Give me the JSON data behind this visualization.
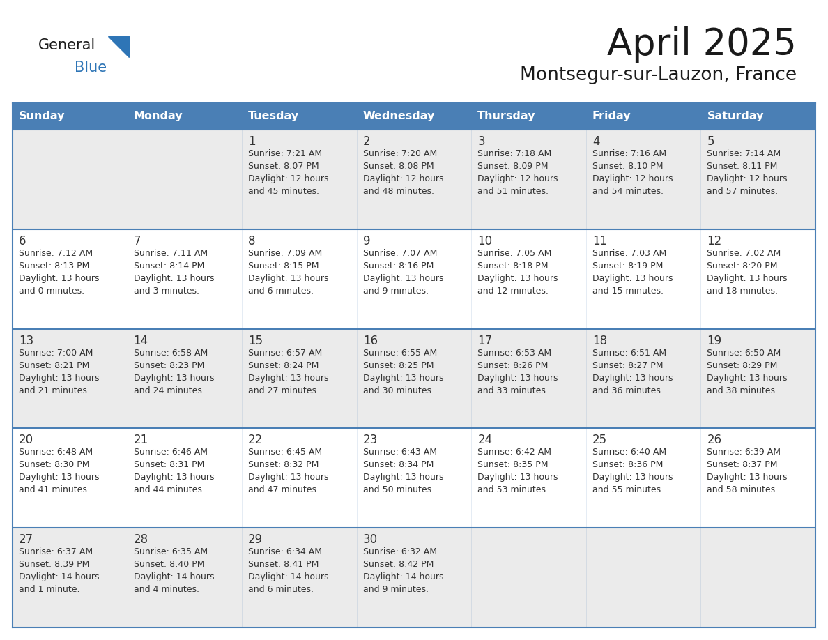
{
  "title": "April 2025",
  "subtitle": "Montsegur-sur-Lauzon, France",
  "days_of_week": [
    "Sunday",
    "Monday",
    "Tuesday",
    "Wednesday",
    "Thursday",
    "Friday",
    "Saturday"
  ],
  "header_bg": "#4a7fb5",
  "header_text": "#ffffff",
  "row_bg_light": "#ebebeb",
  "row_bg_white": "#ffffff",
  "cell_text": "#333333",
  "border_color": "#4a7fb5",
  "title_color": "#1a1a1a",
  "subtitle_color": "#1a1a1a",
  "logo_general_color": "#1a1a1a",
  "logo_blue_color": "#2e75b6",
  "weeks": [
    [
      {
        "day": "",
        "sunrise": "",
        "sunset": "",
        "daylight": ""
      },
      {
        "day": "",
        "sunrise": "",
        "sunset": "",
        "daylight": ""
      },
      {
        "day": "1",
        "sunrise": "Sunrise: 7:21 AM",
        "sunset": "Sunset: 8:07 PM",
        "daylight": "Daylight: 12 hours\nand 45 minutes."
      },
      {
        "day": "2",
        "sunrise": "Sunrise: 7:20 AM",
        "sunset": "Sunset: 8:08 PM",
        "daylight": "Daylight: 12 hours\nand 48 minutes."
      },
      {
        "day": "3",
        "sunrise": "Sunrise: 7:18 AM",
        "sunset": "Sunset: 8:09 PM",
        "daylight": "Daylight: 12 hours\nand 51 minutes."
      },
      {
        "day": "4",
        "sunrise": "Sunrise: 7:16 AM",
        "sunset": "Sunset: 8:10 PM",
        "daylight": "Daylight: 12 hours\nand 54 minutes."
      },
      {
        "day": "5",
        "sunrise": "Sunrise: 7:14 AM",
        "sunset": "Sunset: 8:11 PM",
        "daylight": "Daylight: 12 hours\nand 57 minutes."
      }
    ],
    [
      {
        "day": "6",
        "sunrise": "Sunrise: 7:12 AM",
        "sunset": "Sunset: 8:13 PM",
        "daylight": "Daylight: 13 hours\nand 0 minutes."
      },
      {
        "day": "7",
        "sunrise": "Sunrise: 7:11 AM",
        "sunset": "Sunset: 8:14 PM",
        "daylight": "Daylight: 13 hours\nand 3 minutes."
      },
      {
        "day": "8",
        "sunrise": "Sunrise: 7:09 AM",
        "sunset": "Sunset: 8:15 PM",
        "daylight": "Daylight: 13 hours\nand 6 minutes."
      },
      {
        "day": "9",
        "sunrise": "Sunrise: 7:07 AM",
        "sunset": "Sunset: 8:16 PM",
        "daylight": "Daylight: 13 hours\nand 9 minutes."
      },
      {
        "day": "10",
        "sunrise": "Sunrise: 7:05 AM",
        "sunset": "Sunset: 8:18 PM",
        "daylight": "Daylight: 13 hours\nand 12 minutes."
      },
      {
        "day": "11",
        "sunrise": "Sunrise: 7:03 AM",
        "sunset": "Sunset: 8:19 PM",
        "daylight": "Daylight: 13 hours\nand 15 minutes."
      },
      {
        "day": "12",
        "sunrise": "Sunrise: 7:02 AM",
        "sunset": "Sunset: 8:20 PM",
        "daylight": "Daylight: 13 hours\nand 18 minutes."
      }
    ],
    [
      {
        "day": "13",
        "sunrise": "Sunrise: 7:00 AM",
        "sunset": "Sunset: 8:21 PM",
        "daylight": "Daylight: 13 hours\nand 21 minutes."
      },
      {
        "day": "14",
        "sunrise": "Sunrise: 6:58 AM",
        "sunset": "Sunset: 8:23 PM",
        "daylight": "Daylight: 13 hours\nand 24 minutes."
      },
      {
        "day": "15",
        "sunrise": "Sunrise: 6:57 AM",
        "sunset": "Sunset: 8:24 PM",
        "daylight": "Daylight: 13 hours\nand 27 minutes."
      },
      {
        "day": "16",
        "sunrise": "Sunrise: 6:55 AM",
        "sunset": "Sunset: 8:25 PM",
        "daylight": "Daylight: 13 hours\nand 30 minutes."
      },
      {
        "day": "17",
        "sunrise": "Sunrise: 6:53 AM",
        "sunset": "Sunset: 8:26 PM",
        "daylight": "Daylight: 13 hours\nand 33 minutes."
      },
      {
        "day": "18",
        "sunrise": "Sunrise: 6:51 AM",
        "sunset": "Sunset: 8:27 PM",
        "daylight": "Daylight: 13 hours\nand 36 minutes."
      },
      {
        "day": "19",
        "sunrise": "Sunrise: 6:50 AM",
        "sunset": "Sunset: 8:29 PM",
        "daylight": "Daylight: 13 hours\nand 38 minutes."
      }
    ],
    [
      {
        "day": "20",
        "sunrise": "Sunrise: 6:48 AM",
        "sunset": "Sunset: 8:30 PM",
        "daylight": "Daylight: 13 hours\nand 41 minutes."
      },
      {
        "day": "21",
        "sunrise": "Sunrise: 6:46 AM",
        "sunset": "Sunset: 8:31 PM",
        "daylight": "Daylight: 13 hours\nand 44 minutes."
      },
      {
        "day": "22",
        "sunrise": "Sunrise: 6:45 AM",
        "sunset": "Sunset: 8:32 PM",
        "daylight": "Daylight: 13 hours\nand 47 minutes."
      },
      {
        "day": "23",
        "sunrise": "Sunrise: 6:43 AM",
        "sunset": "Sunset: 8:34 PM",
        "daylight": "Daylight: 13 hours\nand 50 minutes."
      },
      {
        "day": "24",
        "sunrise": "Sunrise: 6:42 AM",
        "sunset": "Sunset: 8:35 PM",
        "daylight": "Daylight: 13 hours\nand 53 minutes."
      },
      {
        "day": "25",
        "sunrise": "Sunrise: 6:40 AM",
        "sunset": "Sunset: 8:36 PM",
        "daylight": "Daylight: 13 hours\nand 55 minutes."
      },
      {
        "day": "26",
        "sunrise": "Sunrise: 6:39 AM",
        "sunset": "Sunset: 8:37 PM",
        "daylight": "Daylight: 13 hours\nand 58 minutes."
      }
    ],
    [
      {
        "day": "27",
        "sunrise": "Sunrise: 6:37 AM",
        "sunset": "Sunset: 8:39 PM",
        "daylight": "Daylight: 14 hours\nand 1 minute."
      },
      {
        "day": "28",
        "sunrise": "Sunrise: 6:35 AM",
        "sunset": "Sunset: 8:40 PM",
        "daylight": "Daylight: 14 hours\nand 4 minutes."
      },
      {
        "day": "29",
        "sunrise": "Sunrise: 6:34 AM",
        "sunset": "Sunset: 8:41 PM",
        "daylight": "Daylight: 14 hours\nand 6 minutes."
      },
      {
        "day": "30",
        "sunrise": "Sunrise: 6:32 AM",
        "sunset": "Sunset: 8:42 PM",
        "daylight": "Daylight: 14 hours\nand 9 minutes."
      },
      {
        "day": "",
        "sunrise": "",
        "sunset": "",
        "daylight": ""
      },
      {
        "day": "",
        "sunrise": "",
        "sunset": "",
        "daylight": ""
      },
      {
        "day": "",
        "sunrise": "",
        "sunset": "",
        "daylight": ""
      }
    ]
  ]
}
